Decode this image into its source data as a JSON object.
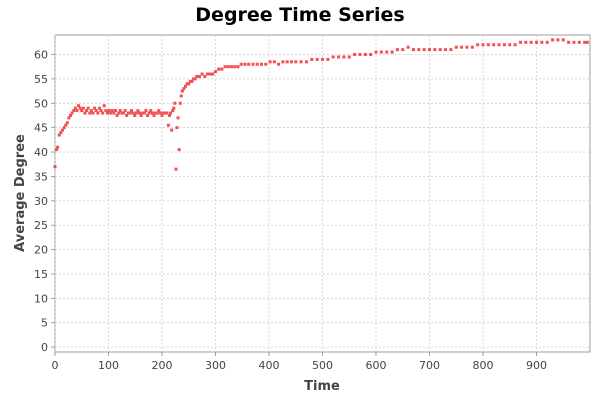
{
  "chart_data": {
    "type": "scatter",
    "title": "Degree Time Series",
    "xlabel": "Time",
    "ylabel": "Average Degree",
    "xlim": [
      0,
      1000
    ],
    "ylim": [
      -1,
      64
    ],
    "xticks": [
      0,
      100,
      200,
      300,
      400,
      500,
      600,
      700,
      800,
      900
    ],
    "yticks": [
      0,
      5,
      10,
      15,
      20,
      25,
      30,
      35,
      40,
      45,
      50,
      55,
      60
    ],
    "grid": true,
    "legend": "none",
    "series": [
      {
        "name": "Average Degree",
        "color": "#f05050",
        "points": [
          [
            0,
            37
          ],
          [
            3,
            40.5
          ],
          [
            5,
            41
          ],
          [
            8,
            43.5
          ],
          [
            11,
            44
          ],
          [
            14,
            44.5
          ],
          [
            17,
            45
          ],
          [
            20,
            45.5
          ],
          [
            23,
            46
          ],
          [
            26,
            47
          ],
          [
            29,
            47.5
          ],
          [
            32,
            48
          ],
          [
            35,
            48.5
          ],
          [
            38,
            49
          ],
          [
            41,
            48.5
          ],
          [
            44,
            49.5
          ],
          [
            47,
            49
          ],
          [
            50,
            48.5
          ],
          [
            53,
            49
          ],
          [
            56,
            48
          ],
          [
            59,
            48.5
          ],
          [
            62,
            49
          ],
          [
            65,
            48
          ],
          [
            68,
            48.5
          ],
          [
            71,
            48
          ],
          [
            74,
            49
          ],
          [
            77,
            48.5
          ],
          [
            80,
            48
          ],
          [
            83,
            49
          ],
          [
            86,
            48.5
          ],
          [
            89,
            48
          ],
          [
            92,
            49.5
          ],
          [
            95,
            48.5
          ],
          [
            98,
            48
          ],
          [
            101,
            48.5
          ],
          [
            104,
            48
          ],
          [
            107,
            48.5
          ],
          [
            110,
            48
          ],
          [
            113,
            48.5
          ],
          [
            116,
            47.5
          ],
          [
            119,
            48
          ],
          [
            122,
            48.5
          ],
          [
            125,
            48
          ],
          [
            128,
            48
          ],
          [
            131,
            48.5
          ],
          [
            134,
            47.5
          ],
          [
            137,
            48
          ],
          [
            140,
            48
          ],
          [
            143,
            48.5
          ],
          [
            146,
            48
          ],
          [
            149,
            47.5
          ],
          [
            152,
            48
          ],
          [
            155,
            48.5
          ],
          [
            158,
            48
          ],
          [
            161,
            47.5
          ],
          [
            164,
            48
          ],
          [
            167,
            48
          ],
          [
            170,
            48.5
          ],
          [
            173,
            47.5
          ],
          [
            176,
            48
          ],
          [
            179,
            48.5
          ],
          [
            182,
            48
          ],
          [
            185,
            47.5
          ],
          [
            188,
            48
          ],
          [
            191,
            48
          ],
          [
            194,
            48.5
          ],
          [
            197,
            48
          ],
          [
            200,
            47.5
          ],
          [
            203,
            48
          ],
          [
            206,
            48
          ],
          [
            209,
            48
          ],
          [
            212,
            45.5
          ],
          [
            214,
            47.5
          ],
          [
            216,
            48
          ],
          [
            218,
            44.5
          ],
          [
            220,
            48.5
          ],
          [
            222,
            49
          ],
          [
            224,
            50
          ],
          [
            226,
            36.5
          ],
          [
            228,
            45
          ],
          [
            230,
            47
          ],
          [
            232,
            40.5
          ],
          [
            234,
            50
          ],
          [
            236,
            51.5
          ],
          [
            238,
            52.5
          ],
          [
            241,
            53
          ],
          [
            244,
            53.5
          ],
          [
            247,
            54
          ],
          [
            250,
            54
          ],
          [
            253,
            54.5
          ],
          [
            256,
            54.5
          ],
          [
            259,
            55
          ],
          [
            262,
            55
          ],
          [
            265,
            55.5
          ],
          [
            270,
            55.5
          ],
          [
            275,
            56
          ],
          [
            280,
            55.5
          ],
          [
            285,
            56
          ],
          [
            290,
            56
          ],
          [
            295,
            56
          ],
          [
            300,
            56.5
          ],
          [
            306,
            57
          ],
          [
            312,
            57
          ],
          [
            318,
            57.5
          ],
          [
            324,
            57.5
          ],
          [
            330,
            57.5
          ],
          [
            336,
            57.5
          ],
          [
            342,
            57.5
          ],
          [
            348,
            58
          ],
          [
            355,
            58
          ],
          [
            362,
            58
          ],
          [
            370,
            58
          ],
          [
            378,
            58
          ],
          [
            386,
            58
          ],
          [
            394,
            58
          ],
          [
            402,
            58.5
          ],
          [
            410,
            58.5
          ],
          [
            418,
            58
          ],
          [
            426,
            58.5
          ],
          [
            434,
            58.5
          ],
          [
            442,
            58.5
          ],
          [
            450,
            58.5
          ],
          [
            460,
            58.5
          ],
          [
            470,
            58.5
          ],
          [
            480,
            59
          ],
          [
            490,
            59
          ],
          [
            500,
            59
          ],
          [
            510,
            59
          ],
          [
            520,
            59.5
          ],
          [
            530,
            59.5
          ],
          [
            540,
            59.5
          ],
          [
            550,
            59.5
          ],
          [
            560,
            60
          ],
          [
            570,
            60
          ],
          [
            580,
            60
          ],
          [
            590,
            60
          ],
          [
            600,
            60.5
          ],
          [
            610,
            60.5
          ],
          [
            620,
            60.5
          ],
          [
            630,
            60.5
          ],
          [
            640,
            61
          ],
          [
            650,
            61
          ],
          [
            660,
            61.5
          ],
          [
            670,
            61
          ],
          [
            680,
            61
          ],
          [
            690,
            61
          ],
          [
            700,
            61
          ],
          [
            710,
            61
          ],
          [
            720,
            61
          ],
          [
            730,
            61
          ],
          [
            740,
            61
          ],
          [
            750,
            61.5
          ],
          [
            760,
            61.5
          ],
          [
            770,
            61.5
          ],
          [
            780,
            61.5
          ],
          [
            790,
            62
          ],
          [
            800,
            62
          ],
          [
            810,
            62
          ],
          [
            820,
            62
          ],
          [
            830,
            62
          ],
          [
            840,
            62
          ],
          [
            850,
            62
          ],
          [
            860,
            62
          ],
          [
            870,
            62.5
          ],
          [
            880,
            62.5
          ],
          [
            890,
            62.5
          ],
          [
            900,
            62.5
          ],
          [
            910,
            62.5
          ],
          [
            920,
            62.5
          ],
          [
            930,
            63
          ],
          [
            940,
            63
          ],
          [
            950,
            63
          ],
          [
            960,
            62.5
          ],
          [
            970,
            62.5
          ],
          [
            980,
            62.5
          ],
          [
            990,
            62.5
          ],
          [
            995,
            62.5
          ]
        ]
      }
    ]
  }
}
